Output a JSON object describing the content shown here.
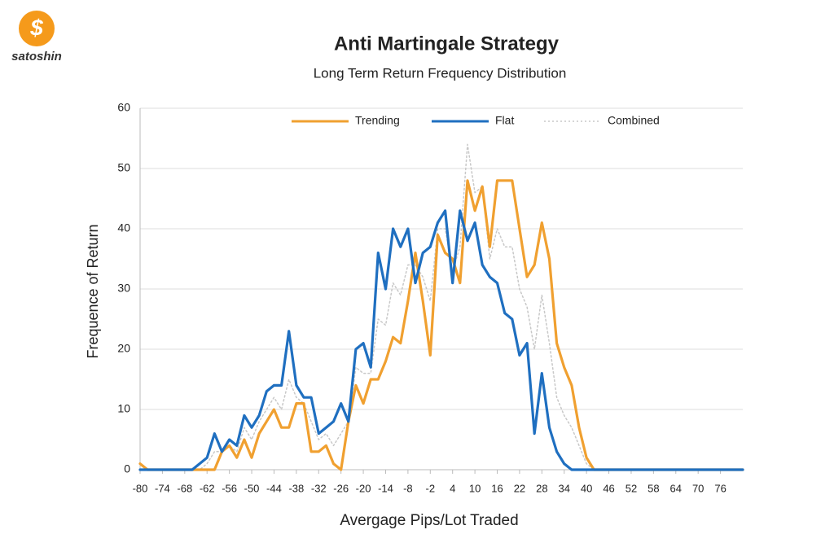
{
  "logo": {
    "symbol": "$",
    "text": "satoshin"
  },
  "chart_data": {
    "type": "line",
    "title": "Anti Martingale Strategy",
    "subtitle": "Long Term Return Frequency Distribution",
    "x_label": "Avergage Pips/Lot Traded",
    "y_label": "Frequence of Return",
    "x": [
      -80,
      -78,
      -76,
      -74,
      -72,
      -70,
      -68,
      -66,
      -64,
      -62,
      -60,
      -58,
      -56,
      -54,
      -52,
      -50,
      -48,
      -46,
      -44,
      -42,
      -40,
      -38,
      -36,
      -34,
      -32,
      -30,
      -28,
      -26,
      -24,
      -22,
      -20,
      -18,
      -16,
      -14,
      -12,
      -10,
      -8,
      -6,
      -4,
      -2,
      0,
      2,
      4,
      6,
      8,
      10,
      12,
      14,
      16,
      18,
      20,
      22,
      24,
      26,
      28,
      30,
      32,
      34,
      36,
      38,
      40,
      42,
      44,
      46,
      48,
      50,
      52,
      54,
      56,
      58,
      60,
      62,
      64,
      66,
      68,
      70,
      72,
      74,
      76,
      78,
      80,
      82
    ],
    "series": [
      {
        "name": "Trending",
        "color": "#f0a030",
        "style": "solid",
        "values": [
          1,
          0,
          0,
          0,
          0,
          0,
          0,
          0,
          0,
          0,
          0,
          3,
          4,
          2,
          5,
          2,
          6,
          8,
          10,
          7,
          7,
          11,
          11,
          3,
          3,
          4,
          1,
          0,
          8,
          14,
          11,
          15,
          15,
          18,
          22,
          21,
          28,
          36,
          28,
          19,
          39,
          36,
          35,
          31,
          48,
          43,
          47,
          37,
          48,
          48,
          48,
          40,
          32,
          34,
          41,
          35,
          21,
          17,
          14,
          7,
          2,
          0,
          0,
          0,
          0,
          0,
          0,
          0,
          0,
          0,
          0,
          0,
          0,
          0,
          0,
          0,
          0,
          0,
          0,
          0,
          0,
          0
        ]
      },
      {
        "name": "Flat",
        "color": "#1f6fc0",
        "style": "solid",
        "values": [
          0,
          0,
          0,
          0,
          0,
          0,
          0,
          0,
          1,
          2,
          6,
          3,
          5,
          4,
          9,
          7,
          9,
          13,
          14,
          14,
          23,
          14,
          12,
          12,
          6,
          7,
          8,
          11,
          8,
          20,
          21,
          17,
          36,
          30,
          40,
          37,
          40,
          31,
          36,
          37,
          41,
          43,
          31,
          43,
          38,
          41,
          34,
          32,
          31,
          26,
          25,
          19,
          21,
          6,
          16,
          7,
          3,
          1,
          0,
          0,
          0,
          0,
          0,
          0,
          0,
          0,
          0,
          0,
          0,
          0,
          0,
          0,
          0,
          0,
          0,
          0,
          0,
          0,
          0,
          0,
          0,
          0
        ]
      },
      {
        "name": "Combined",
        "color": "#c8c8c8",
        "style": "dotted",
        "values": [
          0,
          0,
          0,
          0,
          0,
          0,
          0,
          0,
          0,
          1,
          3,
          3,
          4,
          3,
          7,
          5,
          8,
          10,
          12,
          10,
          15,
          12,
          11,
          8,
          5,
          6,
          4,
          6,
          8,
          17,
          16,
          16,
          25,
          24,
          31,
          29,
          34,
          34,
          32,
          28,
          40,
          40,
          33,
          37,
          54,
          46,
          47,
          35,
          40,
          37,
          37,
          30,
          27,
          20,
          29,
          21,
          12,
          9,
          7,
          4,
          1,
          0,
          0,
          0,
          0,
          0,
          0,
          0,
          0,
          0,
          0,
          0,
          0,
          0,
          0,
          0,
          0,
          0,
          0,
          0,
          0,
          0
        ]
      }
    ],
    "xlim": [
      -80,
      82
    ],
    "xticks": [
      -80,
      -74,
      -68,
      -62,
      -56,
      -50,
      -44,
      -38,
      -32,
      -26,
      -20,
      -14,
      -8,
      -2,
      4,
      10,
      16,
      22,
      28,
      34,
      40,
      46,
      52,
      58,
      64,
      70,
      76
    ],
    "ylim": [
      0,
      60
    ],
    "yticks": [
      0,
      10,
      20,
      30,
      40,
      50,
      60
    ],
    "grid": true,
    "legend": "top"
  }
}
